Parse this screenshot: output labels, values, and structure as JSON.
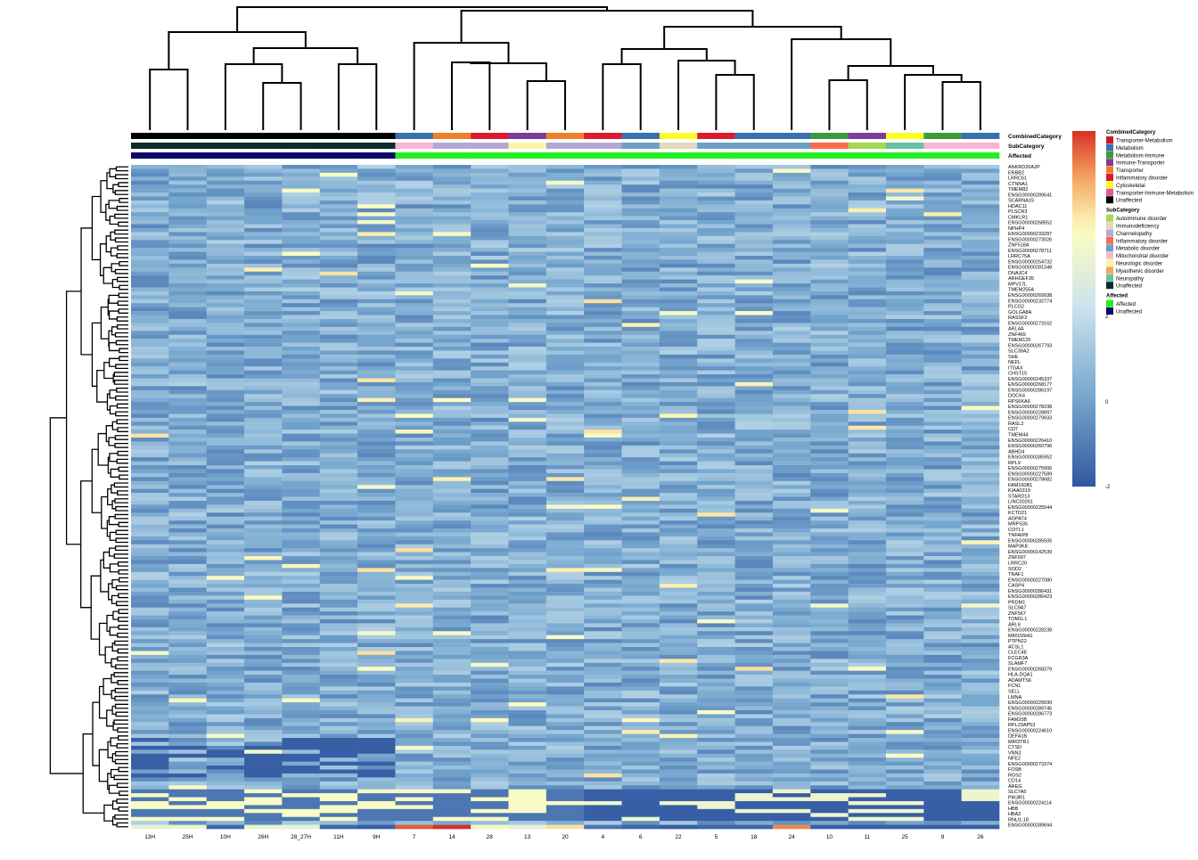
{
  "chart_data": {
    "type": "heatmap",
    "title": "",
    "columns": [
      "13H",
      "25H",
      "10H",
      "26H",
      "28_27H",
      "11H",
      "9H",
      "7",
      "14",
      "28",
      "13",
      "20",
      "4",
      "6",
      "22",
      "5",
      "18",
      "24",
      "10",
      "11",
      "25",
      "9",
      "26"
    ],
    "annotation_tracks": [
      {
        "name": "CombinedCategory",
        "values": [
          "Unaffected",
          "Unaffected",
          "Unaffected",
          "Unaffected",
          "Unaffected",
          "Unaffected",
          "Unaffected",
          "Metabolism",
          "Transporter",
          "Inflammatory disorder",
          "Immune-Transporter",
          "Transporter",
          "Inflammatory disorder",
          "Metabolism",
          "Cytoskeletal",
          "Inflammatory disorder",
          "Metabolism",
          "Metabolism",
          "Metabolism-Immune",
          "Immune-Transporter",
          "Cytoskeletal",
          "Metabolism-Immune",
          "Metabolism"
        ]
      },
      {
        "name": "SubCategory",
        "values": [
          "Unaffected",
          "Unaffected",
          "Unaffected",
          "Unaffected",
          "Unaffected",
          "Unaffected",
          "Unaffected",
          "Mitochondrial disorder",
          "Channelopathy",
          "Channelopathy",
          "Neurologic disorder",
          "Channelopathy",
          "Channelopathy",
          "Metabolic disorder",
          "Immunodeficiency",
          "Metabolic disorder",
          "Metabolic disorder",
          "Metabolic disorder",
          "Inflammatory disorder",
          "Autoimmune disorder",
          "Neuropathy",
          "Mitochondrial disorder",
          "Mitochondrial disorder"
        ]
      },
      {
        "name": "Affected",
        "values": [
          "Unaffected",
          "Unaffected",
          "Unaffected",
          "Unaffected",
          "Unaffected",
          "Unaffected",
          "Unaffected",
          "Affected",
          "Affected",
          "Affected",
          "Affected",
          "Affected",
          "Affected",
          "Affected",
          "Affected",
          "Affected",
          "Affected",
          "Affected",
          "Affected",
          "Affected",
          "Affected",
          "Affected",
          "Affected"
        ]
      }
    ],
    "row_labels": [
      "ANKRD20A2P",
      "ERBB2",
      "LRRC51",
      "CTNNA1",
      "TMEM82",
      "ENSG00000289541",
      "SCARNA15",
      "HDAC11",
      "PLSCR3",
      "CMKLR1",
      "ENSG00000268552",
      "NPHP4",
      "ENSG00000233287",
      "ENSG00000273026",
      "ZNF518A",
      "ENSG00000278711",
      "LRRC75A",
      "ENSG00000254732",
      "ENSG00000281348",
      "DNAJC4",
      "ARHGEF35",
      "MPV17L",
      "TMEM255A",
      "ENSG00000269938",
      "ENSG00000232774",
      "PLCG2",
      "GOLGA8A",
      "RASSF2",
      "ENSG00000273162",
      "ARL4A",
      "ZNF469",
      "TMEM125",
      "ENSG00000267793",
      "SLC39A2",
      "SHE",
      "NEFL",
      "ITGAX",
      "CHST15",
      "ENSG00000245337",
      "ENSG00000268177",
      "ENSG00000286197",
      "DOCK4",
      "RPS6KA6",
      "ENSG00000278238",
      "ENSG00000228897",
      "ENSG00000279933",
      "RASL2",
      "CD7",
      "TMEM44",
      "ENSG00000226410",
      "ENSG00000260796",
      "ABHD4",
      "ENSG00000285952",
      "RPL9",
      "ENSG00000275906",
      "ENSG00000227589",
      "ENSG00000278682",
      "FAM160B1",
      "KIAA0319",
      "STARD13",
      "LINC00261",
      "ENSG00000225544",
      "KCTD21",
      "AGPAT4",
      "MRPS35",
      "COTL1",
      "TNFAIP8",
      "ENSG00000285505",
      "MAP3K8",
      "ENSG00000142539",
      "ZNF597",
      "LRRC20",
      "SOD2",
      "TRAF1",
      "ENSG00000227080",
      "CASP4",
      "ENSG00000286431",
      "ENSG00000286423",
      "PRDM1",
      "SLC9A7",
      "ZNF567",
      "TOM1L1",
      "ARL6",
      "ENSG00000228238",
      "MIR155HG",
      "PTPN22",
      "ACSL1",
      "CLEC4E",
      "FCGR3A",
      "SLAMF7",
      "ENSG00000268279",
      "HLA-DQA1",
      "ADAMTS6",
      "FCN1",
      "SELL",
      "LMNA",
      "ENSG00000229930",
      "ENSG00000289745",
      "ENSG00000286773",
      "FAM20B",
      "RPL23AP53",
      "ENSG00000224610",
      "DEFA1B",
      "MIR3TR1",
      "CTSD",
      "VNN2",
      "NFE2",
      "ENSG00000273374",
      "FOSB",
      "RGS2",
      "CD14",
      "AREG",
      "SLC7A5",
      "PIK3R1",
      "ENSG00000224114",
      "HBB",
      "HBA2",
      "RNU1-18",
      "ENSG00000289694"
    ],
    "color_scale": {
      "min": -2,
      "mid": 0,
      "max": 2,
      "ticks": [
        "2",
        "0",
        "-2"
      ]
    },
    "legends": [
      {
        "title": "CombinedCategory",
        "items": [
          "Transporter-Metabolism",
          "Metabolism",
          "Metabolism-Immune",
          "Immune-Transporter",
          "Transporter",
          "Inflammatory disorder",
          "Cytoskeletal",
          "Transporter-Immune-Metabolism",
          "Unaffected"
        ],
        "colors": [
          "#c9192a",
          "#3a6fb0",
          "#3d9b3c",
          "#7e3d98",
          "#f07f2a",
          "#dc1a2e",
          "#fbfb25",
          "#e0589c",
          "#000000"
        ]
      },
      {
        "title": "SubCategory",
        "items": [
          "Autoimmune disorder",
          "Immunodeficiency",
          "Channelopathy",
          "Inflammatory disorder",
          "Metabolic disorder",
          "Mitochondrial disorder",
          "Neurologic disorder",
          "Myasthenic disorder",
          "Neuropathy",
          "Unaffected"
        ],
        "colors": [
          "#a6d854",
          "#e5d8bd",
          "#b3a9d2",
          "#fb6a4a",
          "#6d9ec9",
          "#f7b6d2",
          "#fef6a6",
          "#f4a460",
          "#66c2a5",
          "#0b2b2b"
        ]
      },
      {
        "title": "Affected",
        "items": [
          "Affected",
          "Unaffected"
        ],
        "colors": [
          "#22ee22",
          "#0a0a6a"
        ]
      }
    ]
  }
}
